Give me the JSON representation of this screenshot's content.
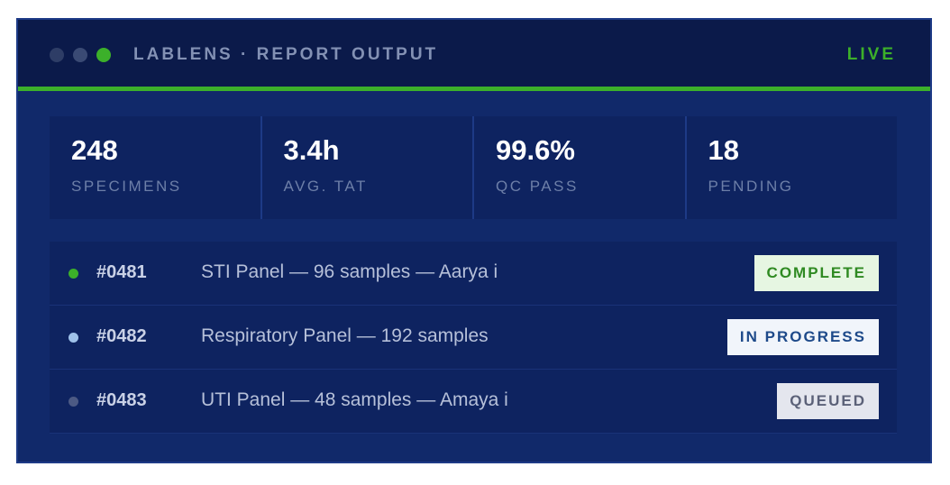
{
  "header": {
    "title": "LABLENS · REPORT OUTPUT",
    "status": "LIVE"
  },
  "stats": [
    {
      "value": "248",
      "label": "SPECIMENS"
    },
    {
      "value": "3.4h",
      "label": "AVG. TAT"
    },
    {
      "value": "99.6%",
      "label": "QC PASS"
    },
    {
      "value": "18",
      "label": "PENDING"
    }
  ],
  "rows": [
    {
      "id": "#0481",
      "description": "STI Panel — 96 samples — Aarya i",
      "status": "COMPLETE"
    },
    {
      "id": "#0482",
      "description": "Respiratory Panel — 192 samples",
      "status": "IN PROGRESS"
    },
    {
      "id": "#0483",
      "description": "UTI Panel — 48 samples — Amaya i",
      "status": "QUEUED"
    }
  ]
}
